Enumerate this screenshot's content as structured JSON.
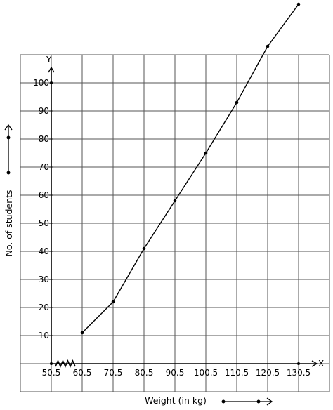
{
  "chart_data": {
    "type": "line",
    "title": "",
    "xlabel": "Weight (in kg)",
    "ylabel": "No. of students",
    "x_axis_letter": "X",
    "y_axis_letter": "Y",
    "x_tick_labels": [
      "50.5",
      "60.5",
      "70.5",
      "80.5",
      "90.5",
      "100.5",
      "110.5",
      "120.5",
      "130.5"
    ],
    "y_tick_labels": [
      "10",
      "20",
      "30",
      "40",
      "50",
      "60",
      "70",
      "80",
      "90",
      "100"
    ],
    "x_axis_break": true,
    "xlim": [
      40.5,
      140.5
    ],
    "ylim": [
      -10,
      110
    ],
    "grid": true,
    "series": [
      {
        "x": [
          60.5,
          70.5,
          80.5,
          90.5,
          100.5,
          110.5,
          120.5,
          130.5
        ],
        "y": [
          11,
          22,
          41,
          58,
          75,
          93,
          113,
          128
        ]
      }
    ]
  }
}
